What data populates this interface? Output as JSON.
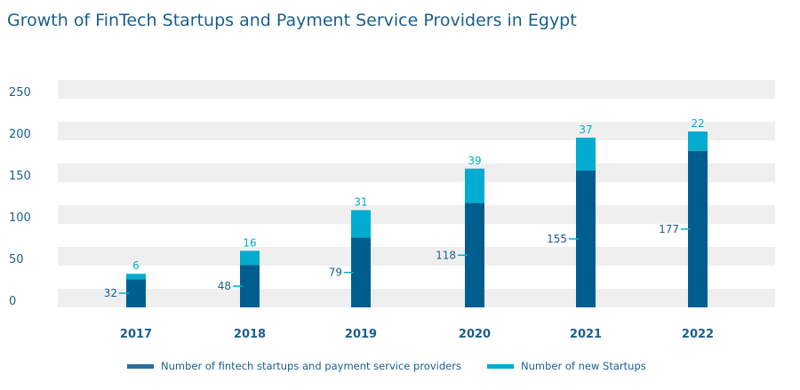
{
  "chart_data": {
    "type": "bar",
    "stacked": true,
    "title": "Growth of FinTech Startups and Payment Service Providers in Egypt",
    "categories": [
      "2017",
      "2018",
      "2019",
      "2020",
      "2021",
      "2022"
    ],
    "series": [
      {
        "name": "Number of fintech startups and payment service providers",
        "values": [
          32,
          48,
          79,
          118,
          155,
          177
        ],
        "color": "#005e8f"
      },
      {
        "name": "Number of new Startups",
        "values": [
          6,
          16,
          31,
          39,
          37,
          22
        ],
        "color": "#00acd0"
      }
    ],
    "ylim": [
      0,
      250
    ],
    "yticks": [
      "0",
      "50",
      "100",
      "150",
      "200",
      "250"
    ],
    "grid": "alternating horizontal bands",
    "legend": "bottom",
    "text_color": "#1b5e8c",
    "band_color": "#efefef"
  }
}
